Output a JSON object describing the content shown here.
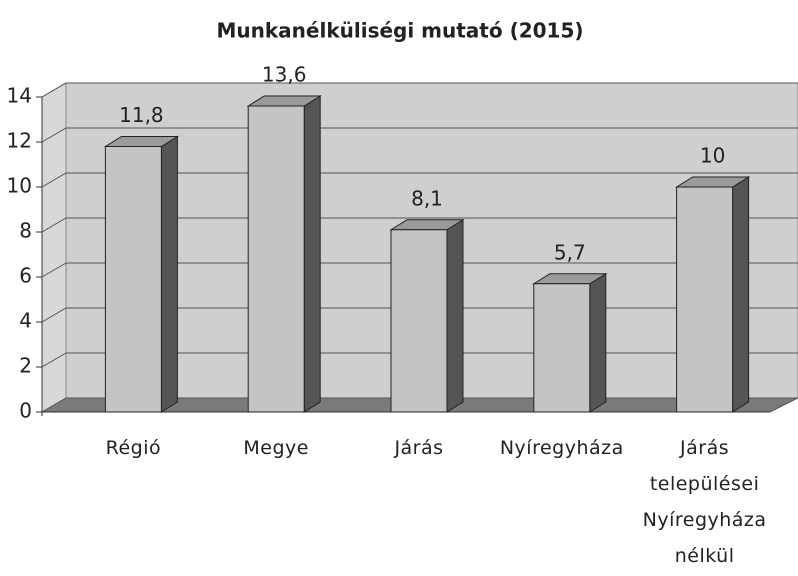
{
  "chart_data": {
    "type": "bar3d",
    "title": "Munkanélküliségi mutató (2015)",
    "categories": [
      "Régió",
      "Megye",
      "Járás",
      "Nyíregyháza",
      "Járás települései Nyíregyháza nélkül"
    ],
    "values": [
      11.8,
      13.6,
      8.1,
      5.7,
      10
    ],
    "value_labels": [
      "11,8",
      "13,6",
      "8,1",
      "5,7",
      "10"
    ],
    "color": "#c4c4c4",
    "ylim": [
      0,
      14
    ],
    "yticks": [
      0,
      2,
      4,
      6,
      8,
      10,
      12,
      14
    ],
    "grid": true
  }
}
